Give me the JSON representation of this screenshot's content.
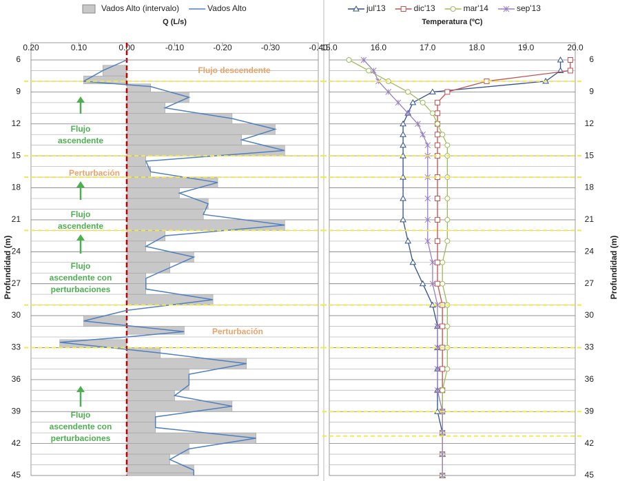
{
  "chart_data": [
    {
      "type": "area-line",
      "x_label": "Q (L/s)",
      "y_label": "Profundidad (m)",
      "xlim": [
        0.2,
        -0.4
      ],
      "xticks": [
        {
          "value": 0.2,
          "label": "0.20"
        },
        {
          "value": 0.1,
          "label": "0.10"
        },
        {
          "value": 0,
          "label": "0.00"
        },
        {
          "value": -0.1,
          "label": "-0.10"
        },
        {
          "value": -0.2,
          "label": "-0.20"
        },
        {
          "value": -0.3,
          "label": "-0.30"
        },
        {
          "value": -0.4,
          "label": "-0.40"
        }
      ],
      "ylim": [
        6,
        45
      ],
      "yticks": [
        6,
        9,
        12,
        15,
        18,
        21,
        24,
        27,
        30,
        33,
        36,
        39,
        42,
        45
      ],
      "depth": [
        6,
        7,
        8,
        8.5,
        9.5,
        10.5,
        11.5,
        12.5,
        13.5,
        14.5,
        15.5,
        16.5,
        17.5,
        18.5,
        19.5,
        20.5,
        21.5,
        22.5,
        23.5,
        24.5,
        25.5,
        26.5,
        27.5,
        28.5,
        29.5,
        30.5,
        31.5,
        32,
        32.5,
        33.5,
        34.5,
        35.5,
        36.5,
        37.5,
        38.5,
        39.5,
        40.5,
        41.5,
        42.5,
        43.5,
        44.5,
        45
      ],
      "series": [
        {
          "name": "Vados Alto (intervalo)",
          "color": "#c8c8c8",
          "values": [
            0,
            0.05,
            0.09,
            -0.05,
            -0.13,
            -0.08,
            -0.22,
            -0.31,
            -0.24,
            -0.33,
            -0.04,
            -0.05,
            -0.19,
            -0.11,
            -0.17,
            -0.16,
            -0.33,
            -0.08,
            -0.04,
            -0.14,
            -0.09,
            -0.04,
            -0.04,
            -0.18,
            0,
            0.09,
            -0.12,
            0,
            0.14,
            -0.07,
            -0.25,
            -0.13,
            -0.13,
            -0.1,
            -0.22,
            -0.06,
            -0.06,
            -0.27,
            -0.13,
            -0.09,
            -0.14,
            -0.14
          ]
        },
        {
          "name": "Vados Alto",
          "color": "#4f7fc0",
          "values": [
            0,
            0.05,
            0.09,
            -0.05,
            -0.13,
            -0.08,
            -0.22,
            -0.31,
            -0.24,
            -0.33,
            -0.04,
            -0.05,
            -0.19,
            -0.11,
            -0.17,
            -0.16,
            -0.33,
            -0.08,
            -0.04,
            -0.14,
            -0.09,
            -0.04,
            -0.04,
            -0.18,
            0,
            0.09,
            -0.12,
            0,
            0.14,
            -0.07,
            -0.25,
            -0.13,
            -0.13,
            -0.1,
            -0.22,
            -0.06,
            -0.06,
            -0.27,
            -0.13,
            -0.09,
            -0.14,
            -0.14
          ]
        }
      ],
      "boundary_depths": [
        8,
        15,
        17,
        22,
        29,
        33
      ],
      "boundary_color": "#f2e84a",
      "annotations": [
        {
          "lines": [
            "Flujo descendente"
          ],
          "color": "#e8a36a"
        },
        {
          "lines": [
            "Flujo",
            "ascendente"
          ],
          "color": "#4caf50"
        },
        {
          "lines": [
            "Perturbación"
          ],
          "color": "#e8a36a"
        },
        {
          "lines": [
            "Flujo",
            "ascendente"
          ],
          "color": "#4caf50"
        },
        {
          "lines": [
            "Flujo",
            "ascendente con",
            "perturbaciones"
          ],
          "color": "#4caf50"
        },
        {
          "lines": [
            "Perturbación"
          ],
          "color": "#e8a36a"
        },
        {
          "lines": [
            "Flujo",
            "ascendente con",
            "perturbaciones"
          ],
          "color": "#4caf50"
        }
      ]
    },
    {
      "type": "line",
      "x_label": "Temperatura (ºC)",
      "y_label": "Profundidad (m)",
      "xlim": [
        15,
        20
      ],
      "xticks": [
        {
          "value": 15,
          "label": "15.0"
        },
        {
          "value": 16,
          "label": "16.0"
        },
        {
          "value": 17,
          "label": "17.0"
        },
        {
          "value": 18,
          "label": "18.0"
        },
        {
          "value": 19,
          "label": "19.0"
        },
        {
          "value": 20,
          "label": "20.0"
        }
      ],
      "ylim": [
        6,
        45
      ],
      "yticks": [
        6,
        9,
        12,
        15,
        18,
        21,
        24,
        27,
        30,
        33,
        36,
        39,
        42,
        45
      ],
      "depth": [
        6,
        7,
        8,
        9,
        10,
        11,
        12,
        13,
        14,
        15,
        17,
        19,
        21,
        23,
        25,
        27,
        29,
        31,
        33,
        35,
        37,
        39,
        41,
        43,
        45
      ],
      "series": [
        {
          "name": "jul'13",
          "color": "#2f4f8f",
          "marker": "triangle",
          "values": [
            19.7,
            19.7,
            19.4,
            17.1,
            16.7,
            16.6,
            16.5,
            16.5,
            16.5,
            16.5,
            16.5,
            16.5,
            16.5,
            16.6,
            16.7,
            16.9,
            17.1,
            17.2,
            17.2,
            17.2,
            17.2,
            17.2,
            17.3,
            17.3,
            17.3
          ]
        },
        {
          "name": "dic'13",
          "color": "#c0504d",
          "marker": "square",
          "values": [
            19.9,
            19.9,
            18.2,
            17.4,
            17.2,
            17.2,
            17.2,
            17.2,
            17.2,
            17.2,
            17.2,
            17.2,
            17.2,
            17.2,
            17.2,
            17.2,
            17.3,
            17.3,
            17.3,
            17.3,
            17.3,
            17.3,
            17.3,
            17.3,
            17.3
          ]
        },
        {
          "name": "mar'14",
          "color": "#9bbb59",
          "marker": "circle",
          "values": [
            15.4,
            15.8,
            16.2,
            16.6,
            16.9,
            17.1,
            17.2,
            17.3,
            17.4,
            17.4,
            17.4,
            17.4,
            17.4,
            17.4,
            17.3,
            17.3,
            17.4,
            17.4,
            17.4,
            17.4,
            17.3,
            17.3,
            17.3,
            17.3,
            17.3
          ]
        },
        {
          "name": "sep'13",
          "color": "#9a7fc0",
          "marker": "star",
          "values": [
            15.7,
            15.9,
            16.0,
            16.2,
            16.4,
            16.6,
            16.8,
            16.9,
            17.0,
            17.0,
            17.0,
            17.0,
            17.0,
            17.0,
            17.1,
            17.1,
            17.2,
            17.2,
            17.2,
            17.2,
            17.2,
            17.3,
            17.3,
            17.3,
            17.3
          ]
        }
      ],
      "boundary_depths": [
        8,
        15,
        17,
        22,
        29,
        33,
        39,
        41.3
      ],
      "boundary_color": "#f2e84a"
    }
  ]
}
